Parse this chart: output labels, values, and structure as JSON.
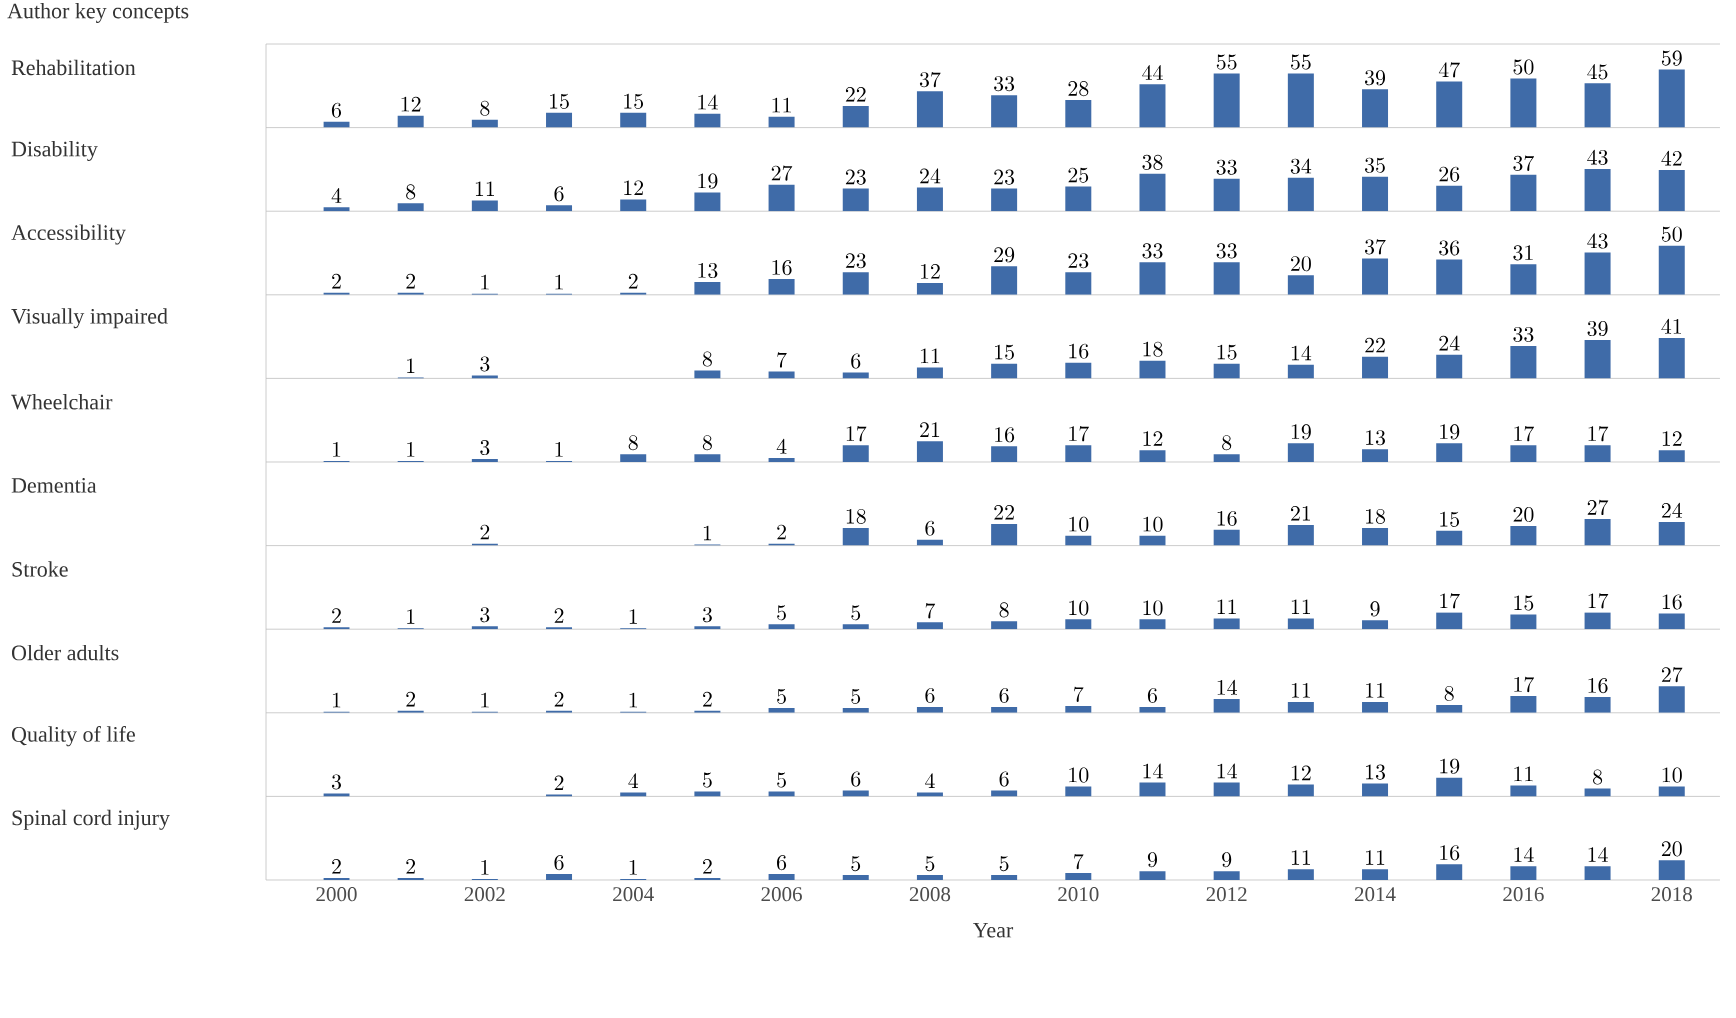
{
  "chart_data": [
    {
      "type": "bar",
      "title": "Author key concepts",
      "ylabel": "Rehabilitation",
      "categories": [
        "2000",
        null,
        "2002",
        null,
        "2004",
        null,
        "2006",
        null,
        "2008",
        null,
        "2010",
        null,
        "2012",
        null,
        "2014",
        null,
        "2016",
        null,
        "2018"
      ],
      "values": [
        6,
        12,
        8,
        15,
        15,
        14,
        11,
        22,
        37,
        33,
        28,
        44,
        55,
        55,
        39,
        47,
        50,
        45,
        59
      ],
      "color": "#3f6ba8",
      "data_labels": true,
      "ylim": [
        0,
        85
      ],
      "tick_labels": false
    },
    {
      "type": "bar",
      "ylabel": "Disability",
      "categories": [
        "2000",
        null,
        "2002",
        null,
        "2004",
        null,
        "2006",
        null,
        "2008",
        null,
        "2010",
        null,
        "2012",
        null,
        "2014",
        null,
        "2016",
        null,
        "2018"
      ],
      "values": [
        4,
        8,
        11,
        6,
        12,
        19,
        27,
        23,
        24,
        23,
        25,
        38,
        33,
        34,
        35,
        26,
        37,
        43,
        42
      ],
      "color": "#3f6ba8",
      "data_labels": true,
      "ylim": [
        0,
        85
      ],
      "tick_labels": false
    },
    {
      "type": "bar",
      "ylabel": "Accessibility",
      "categories": [
        "2000",
        null,
        "2002",
        null,
        "2004",
        null,
        "2006",
        null,
        "2008",
        null,
        "2010",
        null,
        "2012",
        null,
        "2014",
        null,
        "2016",
        null,
        "2018"
      ],
      "values": [
        2,
        2,
        1,
        1,
        2,
        13,
        16,
        23,
        12,
        29,
        23,
        33,
        33,
        20,
        37,
        36,
        31,
        43,
        50
      ],
      "color": "#3f6ba8",
      "data_labels": true,
      "ylim": [
        0,
        85
      ],
      "tick_labels": false
    },
    {
      "type": "bar",
      "ylabel": "Visually impaired",
      "categories": [
        "2000",
        null,
        "2002",
        null,
        "2004",
        null,
        "2006",
        null,
        "2008",
        null,
        "2010",
        null,
        "2012",
        null,
        "2014",
        null,
        "2016",
        null,
        "2018"
      ],
      "values": [
        null,
        1,
        3,
        null,
        null,
        8,
        7,
        6,
        11,
        15,
        16,
        18,
        15,
        14,
        22,
        24,
        33,
        39,
        41
      ],
      "color": "#3f6ba8",
      "data_labels": true,
      "ylim": [
        0,
        85
      ],
      "tick_labels": false
    },
    {
      "type": "bar",
      "ylabel": "Wheelchair",
      "categories": [
        "2000",
        null,
        "2002",
        null,
        "2004",
        null,
        "2006",
        null,
        "2008",
        null,
        "2010",
        null,
        "2012",
        null,
        "2014",
        null,
        "2016",
        null,
        "2018"
      ],
      "values": [
        1,
        1,
        3,
        1,
        8,
        8,
        4,
        17,
        21,
        16,
        17,
        12,
        8,
        19,
        13,
        19,
        17,
        17,
        12
      ],
      "color": "#3f6ba8",
      "data_labels": true,
      "ylim": [
        0,
        85
      ],
      "tick_labels": false
    },
    {
      "type": "bar",
      "ylabel": "Dementia",
      "categories": [
        "2000",
        null,
        "2002",
        null,
        "2004",
        null,
        "2006",
        null,
        "2008",
        null,
        "2010",
        null,
        "2012",
        null,
        "2014",
        null,
        "2016",
        null,
        "2018"
      ],
      "values": [
        null,
        null,
        2,
        null,
        null,
        1,
        2,
        18,
        6,
        22,
        10,
        10,
        16,
        21,
        18,
        15,
        20,
        27,
        24
      ],
      "color": "#3f6ba8",
      "data_labels": true,
      "ylim": [
        0,
        85
      ],
      "tick_labels": false
    },
    {
      "type": "bar",
      "ylabel": "Stroke",
      "categories": [
        "2000",
        null,
        "2002",
        null,
        "2004",
        null,
        "2006",
        null,
        "2008",
        null,
        "2010",
        null,
        "2012",
        null,
        "2014",
        null,
        "2016",
        null,
        "2018"
      ],
      "values": [
        2,
        1,
        3,
        2,
        1,
        3,
        5,
        5,
        7,
        8,
        10,
        10,
        11,
        11,
        9,
        17,
        15,
        17,
        16
      ],
      "color": "#3f6ba8",
      "data_labels": true,
      "ylim": [
        0,
        85
      ],
      "tick_labels": false
    },
    {
      "type": "bar",
      "ylabel": "Older adults",
      "categories": [
        "2000",
        null,
        "2002",
        null,
        "2004",
        null,
        "2006",
        null,
        "2008",
        null,
        "2010",
        null,
        "2012",
        null,
        "2014",
        null,
        "2016",
        null,
        "2018"
      ],
      "values": [
        1,
        2,
        1,
        2,
        1,
        2,
        5,
        5,
        6,
        6,
        7,
        6,
        14,
        11,
        11,
        8,
        17,
        16,
        27
      ],
      "color": "#3f6ba8",
      "data_labels": true,
      "ylim": [
        0,
        85
      ],
      "tick_labels": false
    },
    {
      "type": "bar",
      "ylabel": "Quality of life",
      "categories": [
        "2000",
        null,
        "2002",
        null,
        "2004",
        null,
        "2006",
        null,
        "2008",
        null,
        "2010",
        null,
        "2012",
        null,
        "2014",
        null,
        "2016",
        null,
        "2018"
      ],
      "values": [
        3,
        null,
        null,
        2,
        4,
        5,
        5,
        6,
        4,
        6,
        10,
        14,
        14,
        12,
        13,
        19,
        11,
        8,
        10
      ],
      "color": "#3f6ba8",
      "data_labels": true,
      "ylim": [
        0,
        85
      ],
      "tick_labels": false
    },
    {
      "type": "bar",
      "ylabel": "Spinal cord injury",
      "xlabel": "Year",
      "categories": [
        "2000",
        null,
        "2002",
        null,
        "2004",
        null,
        "2006",
        null,
        "2008",
        null,
        "2010",
        null,
        "2012",
        null,
        "2014",
        null,
        "2016",
        null,
        "2018"
      ],
      "values": [
        2,
        2,
        1,
        6,
        1,
        2,
        6,
        5,
        5,
        5,
        7,
        9,
        9,
        11,
        11,
        16,
        14,
        14,
        20
      ],
      "color": "#3f6ba8",
      "data_labels": true,
      "ylim": [
        0,
        85
      ],
      "tick_labels": "x"
    }
  ]
}
